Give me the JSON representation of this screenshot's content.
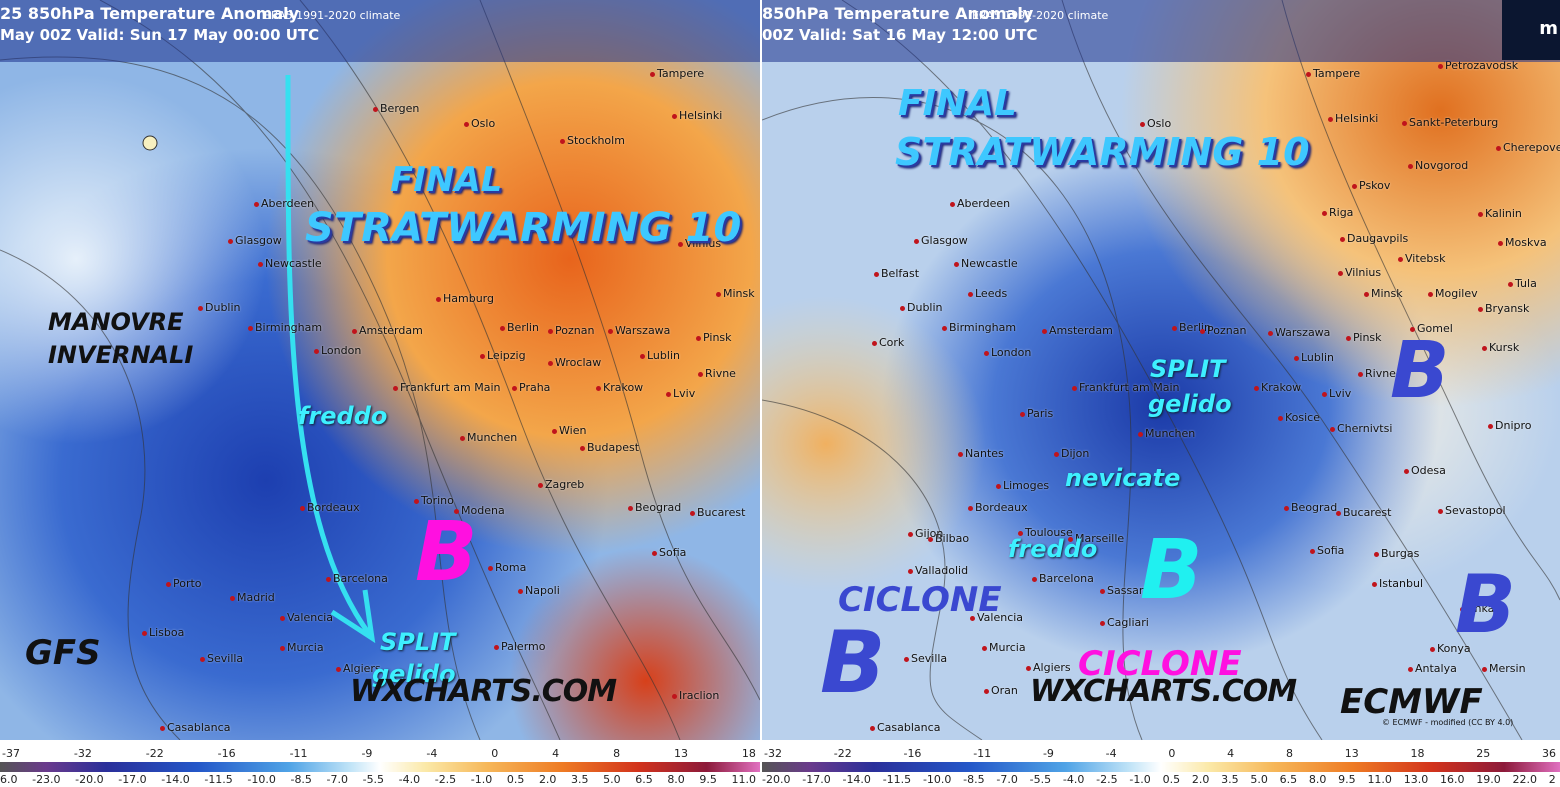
{
  "left": {
    "header": {
      "title": "25 850hPa Temperature Anomaly",
      "climate": "ERA5 1991-2020 climate",
      "valid": "May 00Z Valid: Sun 17 May 00:00 UTC"
    },
    "annotations": [
      "FINAL",
      "STRATWARMING 10",
      "MANOVRE",
      "INVERNALI",
      "freddo",
      "B",
      "SPLIT",
      "gelido",
      "GFS",
      "WXCHARTS.COM"
    ],
    "cities": [
      "Tampere",
      "Oslo",
      "Stockholm",
      "Helsinki",
      "Bergen",
      "Aberdeen",
      "Glasgow",
      "Newcastle",
      "Dublin",
      "Birmingham",
      "London",
      "Amsterdam",
      "Hamburg",
      "Berlin",
      "Poznan",
      "Warszawa",
      "Minsk",
      "Vilnius",
      "Leipzig",
      "Wroclaw",
      "Lublin",
      "Pinsk",
      "Frankfurt am Main",
      "Praha",
      "Krakow",
      "Rivne",
      "Lviv",
      "Munchen",
      "Wien",
      "Budapest",
      "Bordeaux",
      "Torino",
      "Modena",
      "Zagreb",
      "Beograd",
      "Bucarest",
      "Madrid",
      "Barcelona",
      "Roma",
      "Napoli",
      "Sofia",
      "Porto",
      "Lisboa",
      "Sevilla",
      "Valencia",
      "Palermo",
      "Casablanca",
      "Iraclion",
      "Algiers",
      "Murcia"
    ],
    "colorbar": {
      "top": [
        "-37",
        "-32",
        "-22",
        "-16",
        "-11",
        "-9",
        "-4",
        "0",
        "4",
        "8",
        "13",
        "18"
      ],
      "bottom": [
        "6.0",
        "-23.0",
        "-20.0",
        "-17.0",
        "-14.0",
        "-11.5",
        "-10.0",
        "-8.5",
        "-7.0",
        "-5.5",
        "-4.0",
        "-2.5",
        "-1.0",
        "0.5",
        "2.0",
        "3.5",
        "5.0",
        "6.5",
        "8.0",
        "9.5",
        "11.0"
      ]
    }
  },
  "right": {
    "header": {
      "title": "850hPa Temperature Anomaly",
      "climate": "ERA5 1991-2020 climate",
      "valid": "00Z Valid: Sat 16 May 12:00 UTC"
    },
    "logo": "m",
    "annotations": [
      "FINAL",
      "STRATWARMING 10",
      "SPLIT",
      "gelido",
      "B",
      "nevicate",
      "freddo",
      "B",
      "CICLONE",
      "B",
      "CICLONE",
      "WXCHARTS.COM",
      "B",
      "ECMWF"
    ],
    "credit": "© ECMWF - modified (CC BY 4.0)",
    "cities": [
      "Petrozavodsk",
      "Tampere",
      "Helsinki",
      "Sankt-Peterburg",
      "Novgorod",
      "Cherepovets",
      "Oslo",
      "Pskov",
      "Riga",
      "Kalinin",
      "Moskva",
      "Aberdeen",
      "Glasgow",
      "Newcastle",
      "Belfast",
      "Leeds",
      "Dublin",
      "Birmingham",
      "Cork",
      "London",
      "Amsterdam",
      "Berlin",
      "Poznan",
      "Warszawa",
      "Minsk",
      "Vilnius",
      "Daugavpils",
      "Vitebsk",
      "Mogilev",
      "Bryansk",
      "Tula",
      "Gomel",
      "Kursk",
      "Pinsk",
      "Lublin",
      "Rivne",
      "Paris",
      "Frankfurt am Main",
      "Krakow",
      "Lviv",
      "Munchen",
      "Kosice",
      "Chernivtsi",
      "Dnipro",
      "Nantes",
      "Dijon",
      "Limoges",
      "Bordeaux",
      "Beograd",
      "Bucarest",
      "Odesa",
      "Sevastopol",
      "Toulouse",
      "Marseille",
      "Bilbao",
      "Gijon",
      "Valladolid",
      "Barcelona",
      "Sofia",
      "Burgas",
      "Istanbul",
      "Sassari",
      "Valencia",
      "Cagliari",
      "Ankara",
      "Murcia",
      "Sevilla",
      "Konya",
      "Algiers",
      "Antalya",
      "Mersin",
      "Oran",
      "Casablanca"
    ],
    "colorbar": {
      "top": [
        "-32",
        "-22",
        "-16",
        "-11",
        "-9",
        "-4",
        "0",
        "4",
        "8",
        "13",
        "18",
        "25",
        "36"
      ],
      "bottom": [
        "-20.0",
        "-17.0",
        "-14.0",
        "-11.5",
        "-10.0",
        "-8.5",
        "-7.0",
        "-5.5",
        "-4.0",
        "-2.5",
        "-1.0",
        "0.5",
        "2.0",
        "3.5",
        "5.0",
        "6.5",
        "8.0",
        "9.5",
        "11.0",
        "13.0",
        "16.0",
        "19.0",
        "22.0",
        "2"
      ]
    }
  }
}
